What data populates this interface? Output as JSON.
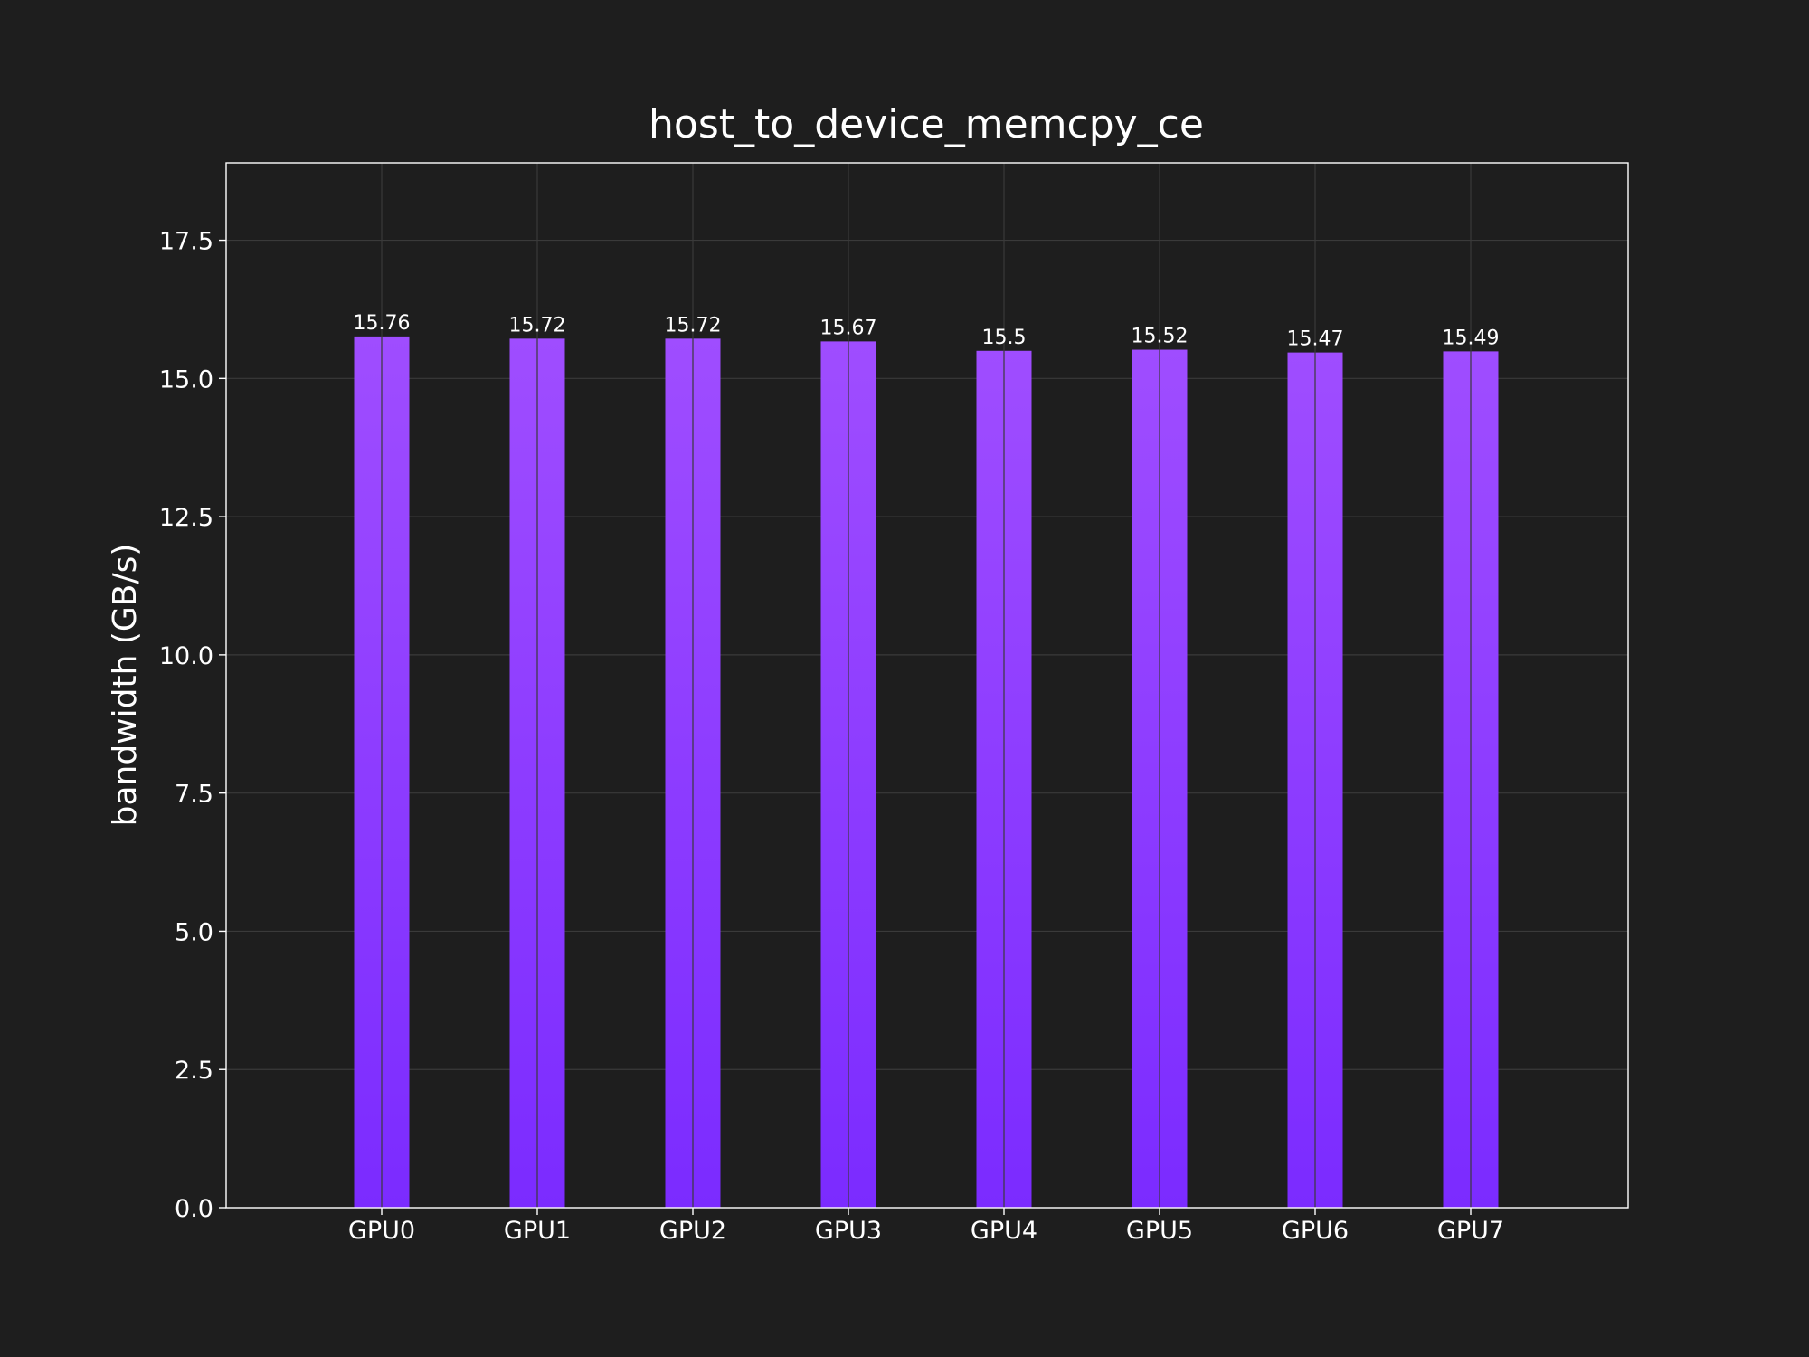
{
  "chart_data": {
    "type": "bar",
    "title": "host_to_device_memcpy_ce",
    "xlabel": "",
    "ylabel": "bandwidth (GB/s)",
    "categories": [
      "GPU0",
      "GPU1",
      "GPU2",
      "GPU3",
      "GPU4",
      "GPU5",
      "GPU6",
      "GPU7"
    ],
    "values": [
      15.76,
      15.72,
      15.72,
      15.67,
      15.5,
      15.52,
      15.47,
      15.49
    ],
    "data_labels": [
      "15.76",
      "15.72",
      "15.72",
      "15.67",
      "15.5",
      "15.52",
      "15.47",
      "15.49"
    ],
    "ylim": [
      0,
      18.9
    ],
    "yticks": [
      0,
      2.5,
      5,
      7.5,
      10,
      12.5,
      15,
      17.5
    ],
    "ytick_labels": [
      "0.0",
      "2.5",
      "5.0",
      "7.5",
      "10.0",
      "12.5",
      "15.0",
      "17.5"
    ],
    "grid": true,
    "legend": "none",
    "colors": {
      "background": "#1e1e1e",
      "bar_top": "#9f4dff",
      "bar_bottom": "#7b2bff",
      "grid": "#3a3a3a",
      "frame": "#ffffff",
      "text": "#ffffff"
    }
  }
}
